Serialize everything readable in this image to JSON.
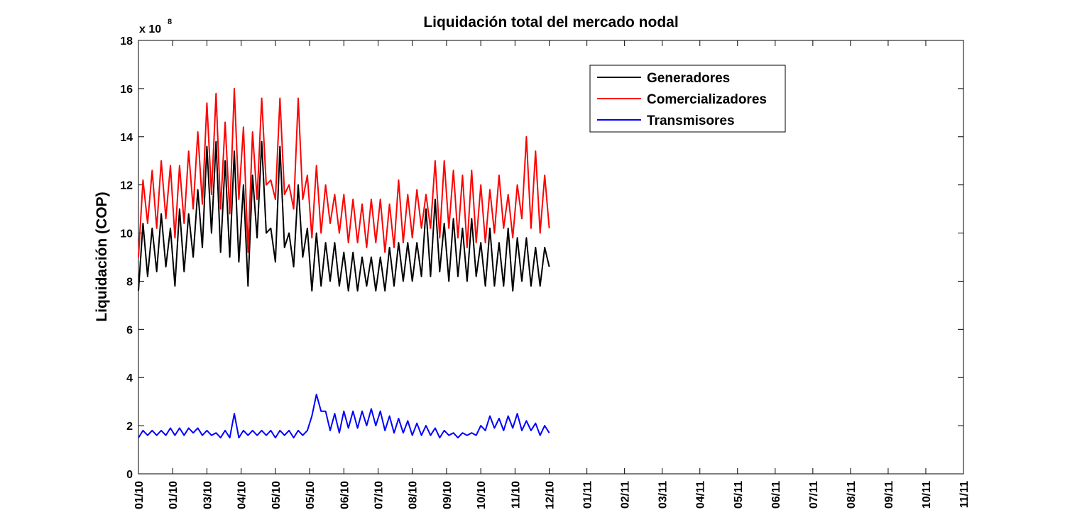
{
  "chart_data": {
    "type": "line",
    "title": "Liquidación total del mercado nodal",
    "y_label": "Liquidación (COP)",
    "y_multiplier": {
      "base": "x 10",
      "exponent": "8"
    },
    "legend": "northeast",
    "grid": false,
    "xlim": [
      0,
      723
    ],
    "ylim": [
      0,
      18
    ],
    "yticks": [
      0,
      2,
      4,
      6,
      8,
      10,
      12,
      14,
      16,
      18
    ],
    "xticks": [
      {
        "value": 0,
        "label": "01/10"
      },
      {
        "value": 30,
        "label": "01/10"
      },
      {
        "value": 60,
        "label": "03/10"
      },
      {
        "value": 90,
        "label": "04/10"
      },
      {
        "value": 120,
        "label": "05/10"
      },
      {
        "value": 150,
        "label": "05/10"
      },
      {
        "value": 180,
        "label": "06/10"
      },
      {
        "value": 210,
        "label": "07/10"
      },
      {
        "value": 240,
        "label": "08/10"
      },
      {
        "value": 270,
        "label": "09/10"
      },
      {
        "value": 300,
        "label": "10/10"
      },
      {
        "value": 330,
        "label": "11/10"
      },
      {
        "value": 360,
        "label": "12/10"
      },
      {
        "value": 393,
        "label": "01/11"
      },
      {
        "value": 426,
        "label": "02/11"
      },
      {
        "value": 459,
        "label": "03/11"
      },
      {
        "value": 492,
        "label": "04/11"
      },
      {
        "value": 525,
        "label": "05/11"
      },
      {
        "value": 558,
        "label": "06/11"
      },
      {
        "value": 591,
        "label": "07/11"
      },
      {
        "value": 624,
        "label": "08/11"
      },
      {
        "value": 657,
        "label": "09/11"
      },
      {
        "value": 690,
        "label": "10/11"
      },
      {
        "value": 723,
        "label": "11/11"
      }
    ],
    "x": [
      0,
      4,
      8,
      12,
      16,
      20,
      24,
      28,
      32,
      36,
      40,
      44,
      48,
      52,
      56,
      60,
      64,
      68,
      72,
      76,
      80,
      84,
      88,
      92,
      96,
      100,
      104,
      108,
      112,
      116,
      120,
      124,
      128,
      132,
      136,
      140,
      144,
      148,
      152,
      156,
      160,
      164,
      168,
      172,
      176,
      180,
      184,
      188,
      192,
      196,
      200,
      204,
      208,
      212,
      216,
      220,
      224,
      228,
      232,
      236,
      240,
      244,
      248,
      252,
      256,
      260,
      264,
      268,
      272,
      276,
      280,
      284,
      288,
      292,
      296,
      300,
      304,
      308,
      312,
      316,
      320,
      324,
      328,
      332,
      336,
      340,
      344,
      348,
      352,
      356,
      360
    ],
    "series": [
      {
        "name": "Generadores",
        "color": "#000000",
        "values": [
          7.6,
          10.4,
          8.2,
          10.2,
          8.4,
          10.8,
          8.6,
          10.2,
          7.8,
          11.0,
          8.4,
          10.8,
          9.0,
          11.8,
          9.4,
          13.6,
          10.0,
          13.8,
          9.2,
          13.0,
          9.0,
          13.4,
          8.8,
          12.0,
          7.8,
          12.4,
          9.8,
          13.8,
          10.0,
          10.2,
          8.8,
          13.6,
          9.4,
          10.0,
          8.6,
          12.0,
          9.0,
          10.2,
          7.6,
          10.0,
          7.8,
          9.6,
          8.0,
          9.6,
          7.8,
          9.2,
          7.6,
          9.2,
          7.6,
          9.0,
          7.8,
          9.0,
          7.6,
          9.0,
          7.6,
          9.4,
          7.8,
          9.6,
          8.0,
          9.6,
          8.0,
          9.6,
          8.2,
          11.0,
          8.2,
          11.4,
          8.4,
          10.4,
          8.0,
          10.6,
          8.2,
          10.2,
          8.0,
          10.6,
          8.2,
          9.6,
          7.8,
          10.2,
          7.8,
          9.6,
          7.8,
          10.2,
          7.6,
          9.8,
          8.0,
          9.8,
          7.8,
          9.4,
          7.8,
          9.4,
          8.6
        ]
      },
      {
        "name": "Comercializadores",
        "color": "#ff0000",
        "values": [
          9.0,
          12.2,
          10.4,
          12.6,
          10.2,
          13.0,
          10.6,
          12.8,
          9.8,
          12.8,
          10.4,
          13.4,
          11.0,
          14.2,
          11.2,
          15.4,
          11.6,
          15.8,
          11.0,
          14.6,
          10.8,
          16.0,
          11.4,
          14.4,
          9.2,
          14.2,
          11.4,
          15.6,
          12.0,
          12.2,
          11.4,
          15.6,
          11.6,
          12.0,
          11.0,
          15.6,
          11.4,
          12.4,
          9.8,
          12.8,
          10.0,
          12.0,
          10.4,
          11.6,
          10.0,
          11.6,
          9.6,
          11.4,
          9.6,
          11.2,
          9.4,
          11.4,
          9.6,
          11.4,
          9.2,
          11.2,
          9.4,
          12.2,
          9.6,
          11.6,
          9.8,
          11.8,
          10.2,
          11.6,
          10.2,
          13.0,
          9.8,
          13.0,
          10.2,
          12.6,
          9.8,
          12.4,
          9.4,
          12.6,
          9.6,
          12.0,
          9.6,
          11.8,
          10.0,
          12.4,
          10.2,
          11.6,
          9.8,
          12.0,
          10.6,
          14.0,
          10.2,
          13.4,
          10.0,
          12.4,
          10.2
        ]
      },
      {
        "name": "Transmisores",
        "color": "#0000ff",
        "values": [
          1.5,
          1.8,
          1.6,
          1.8,
          1.6,
          1.8,
          1.6,
          1.9,
          1.6,
          1.9,
          1.6,
          1.9,
          1.7,
          1.9,
          1.6,
          1.8,
          1.6,
          1.7,
          1.5,
          1.8,
          1.5,
          2.5,
          1.5,
          1.8,
          1.6,
          1.8,
          1.6,
          1.8,
          1.6,
          1.8,
          1.5,
          1.8,
          1.6,
          1.8,
          1.5,
          1.8,
          1.6,
          1.8,
          2.4,
          3.3,
          2.6,
          2.6,
          1.8,
          2.5,
          1.7,
          2.6,
          1.9,
          2.6,
          1.9,
          2.6,
          2.0,
          2.7,
          2.0,
          2.6,
          1.8,
          2.4,
          1.7,
          2.3,
          1.7,
          2.2,
          1.6,
          2.1,
          1.6,
          2.0,
          1.6,
          1.9,
          1.5,
          1.8,
          1.6,
          1.7,
          1.5,
          1.7,
          1.6,
          1.7,
          1.6,
          2.0,
          1.8,
          2.4,
          1.9,
          2.3,
          1.8,
          2.4,
          1.9,
          2.5,
          1.8,
          2.2,
          1.8,
          2.1,
          1.6,
          2.0,
          1.7
        ]
      }
    ]
  }
}
